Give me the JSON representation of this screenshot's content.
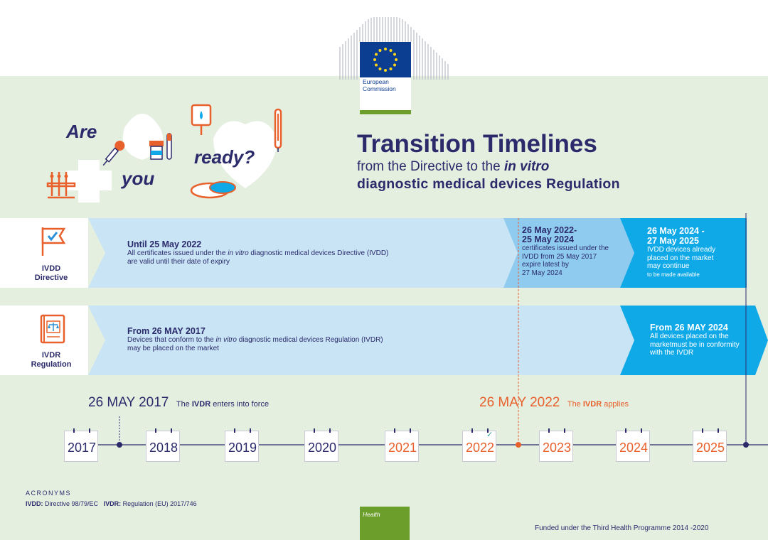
{
  "logo": {
    "line1": "European",
    "line2": "Commission"
  },
  "illustration": {
    "word_are": "Are",
    "word_you": "you",
    "word_ready": "ready?"
  },
  "title": {
    "main": "Transition Timelines",
    "sub1_prefix": "from the Directive to the ",
    "sub1_emph": "in vitro",
    "sub2": "diagnostic medical devices Regulation"
  },
  "ivdd_row": {
    "label_line1": "IVDD",
    "label_line2": "Directive",
    "seg1": {
      "lead": "Until 25 May 2022",
      "body_line1_a": "All certificates issued under the ",
      "body_line1_em": "in vitro",
      "body_line1_b": " diagnostic medical devices Directive (IVDD)",
      "body_line2": "are valid until their date of expiry"
    },
    "seg2": {
      "lead_line1": "26 May 2022-",
      "lead_line2": "25 May 2024",
      "body_line1": "certificates issued under the",
      "body_line2": "IVDD from 25 May 2017",
      "body_line3": "expire latest by",
      "body_line4": "27 May 2024"
    },
    "seg3": {
      "lead_line1": "26 May 2024 -",
      "lead_line2": "27 May 2025",
      "body_line1": "IVDD devices already",
      "body_line2": "placed on the market",
      "body_line3": "may continue",
      "body_line4": "to be made available"
    }
  },
  "ivdr_row": {
    "label_line1": "IVDR",
    "label_line2": "Regulation",
    "seg1": {
      "lead": "From 26 MAY 2017",
      "body_line1_a": "Devices that conform to the ",
      "body_line1_em": "in vitro",
      "body_line1_b": " diagnostic medical devices Regulation (IVDR)",
      "body_line2": "may be placed on the market"
    },
    "seg2": {
      "lead": "From 26 MAY 2024",
      "body_line1": "All devices placed on the",
      "body_line2": "marketmust be in conformity",
      "body_line3": "with the IVDR"
    }
  },
  "milestones": {
    "m2017": {
      "date": "26 MAY 2017",
      "text_a": "The ",
      "text_b": "IVDR",
      "text_c": " enters into force"
    },
    "m2022": {
      "date": "26 MAY 2022",
      "text_a": "The ",
      "text_b": "IVDR",
      "text_c": " applies"
    }
  },
  "timeline": {
    "years": [
      {
        "label": "2017",
        "color": "#2b2a6b"
      },
      {
        "label": "2018",
        "color": "#2b2a6b"
      },
      {
        "label": "2019",
        "color": "#2b2a6b"
      },
      {
        "label": "2020",
        "color": "#2b2a6b"
      },
      {
        "label": "2021",
        "color": "#e8602c"
      },
      {
        "label": "2022",
        "color": "#e8602c"
      },
      {
        "label": "2023",
        "color": "#e8602c"
      },
      {
        "label": "2024",
        "color": "#e8602c"
      },
      {
        "label": "2025",
        "color": "#e8602c"
      }
    ]
  },
  "acronyms": {
    "heading": "ACRONYMS",
    "ivdd_key": "IVDD:",
    "ivdd_val": " Directive 98/79/EC",
    "ivdr_key": "IVDR:",
    "ivdr_val": " Regulation (EU) 2017/746"
  },
  "footer": {
    "health_label": "Health",
    "funding": "Funded under the Third Health Programme 2014 -2020"
  },
  "colors": {
    "navy": "#2b2a6b",
    "orange": "#e8602c",
    "light_blue": "#c8e4f5",
    "mid_blue": "#8fcbef",
    "bright_blue": "#10a9e8",
    "band_green": "#e4efe0",
    "health_green": "#6b9e2a"
  }
}
